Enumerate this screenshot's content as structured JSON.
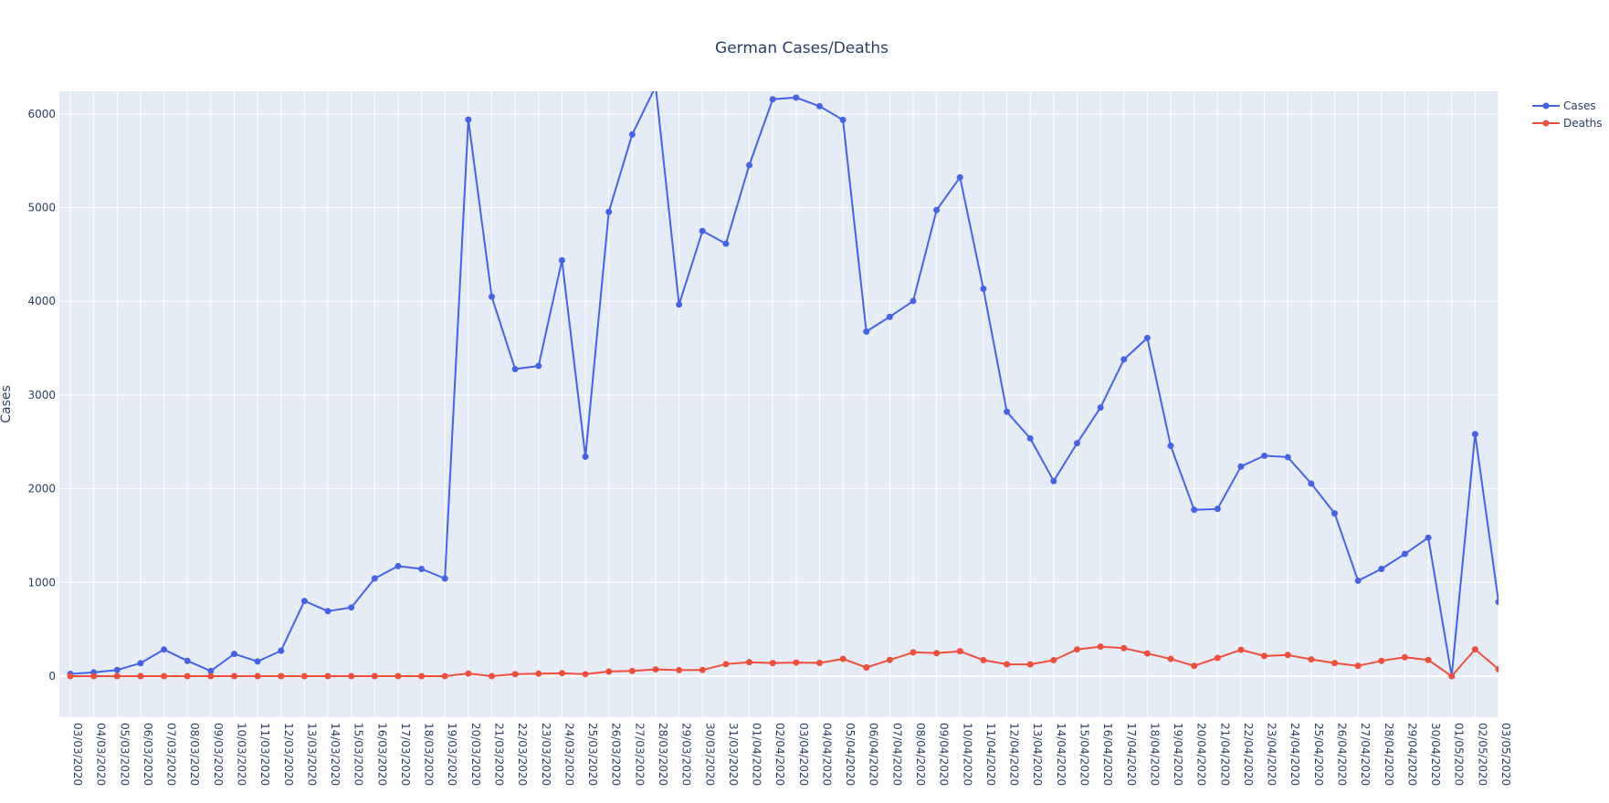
{
  "chart_data": {
    "type": "line",
    "title": "German Cases/Deaths",
    "ylabel": "Cases",
    "xlabel": "",
    "ylim": [
      -380,
      6300
    ],
    "yticks": [
      0,
      1000,
      2000,
      3000,
      4000,
      5000,
      6000
    ],
    "legend_position": "top-right",
    "grid": true,
    "x": [
      "03/03/2020",
      "04/03/2020",
      "05/03/2020",
      "06/03/2020",
      "07/03/2020",
      "08/03/2020",
      "09/03/2020",
      "10/03/2020",
      "11/03/2020",
      "12/03/2020",
      "13/03/2020",
      "14/03/2020",
      "15/03/2020",
      "16/03/2020",
      "17/03/2020",
      "18/03/2020",
      "19/03/2020",
      "20/03/2020",
      "21/03/2020",
      "22/03/2020",
      "23/03/2020",
      "24/03/2020",
      "25/03/2020",
      "26/03/2020",
      "27/03/2020",
      "28/03/2020",
      "29/03/2020",
      "30/03/2020",
      "31/03/2020",
      "01/04/2020",
      "02/04/2020",
      "03/04/2020",
      "04/04/2020",
      "05/04/2020",
      "06/04/2020",
      "07/04/2020",
      "08/04/2020",
      "09/04/2020",
      "10/04/2020",
      "11/04/2020",
      "12/04/2020",
      "13/04/2020",
      "14/04/2020",
      "15/04/2020",
      "16/04/2020",
      "17/04/2020",
      "18/04/2020",
      "19/04/2020",
      "20/04/2020",
      "21/04/2020",
      "22/04/2020",
      "23/04/2020",
      "24/04/2020",
      "25/04/2020",
      "26/04/2020",
      "27/04/2020",
      "28/04/2020",
      "29/04/2020",
      "30/04/2020",
      "01/05/2020",
      "02/05/2020",
      "03/05/2020"
    ],
    "series": [
      {
        "name": "Cases",
        "color": "#4563e8",
        "values": [
          24,
          40,
          66,
          138,
          284,
          163,
          55,
          237,
          157,
          271,
          802,
          693,
          733,
          1043,
          1174,
          1144,
          1042,
          5940,
          4049,
          3276,
          3311,
          4438,
          2342,
          4954,
          5780,
          6294,
          3965,
          4751,
          4615,
          5453,
          6156,
          6174,
          6082,
          5936,
          3677,
          3834,
          4003,
          4974,
          5323,
          4133,
          2821,
          2537,
          2082,
          2486,
          2866,
          3380,
          3609,
          2458,
          1775,
          1785,
          2237,
          2352,
          2337,
          2055,
          1737,
          1018,
          1144,
          1304,
          1478,
          0,
          2583,
          793
        ]
      },
      {
        "name": "Deaths",
        "color": "#ef4f3b",
        "values": [
          0,
          0,
          0,
          0,
          0,
          0,
          0,
          0,
          0,
          0,
          0,
          0,
          0,
          0,
          0,
          0,
          0,
          28,
          0,
          22,
          26,
          32,
          21,
          49,
          55,
          72,
          64,
          66,
          128,
          149,
          140,
          145,
          141,
          184,
          92,
          173,
          254,
          246,
          266,
          171,
          126,
          125,
          170,
          285,
          315,
          299,
          242,
          184,
          110,
          194,
          281,
          215,
          226,
          179,
          140,
          110,
          163,
          202,
          173,
          0,
          286,
          74
        ]
      }
    ]
  }
}
